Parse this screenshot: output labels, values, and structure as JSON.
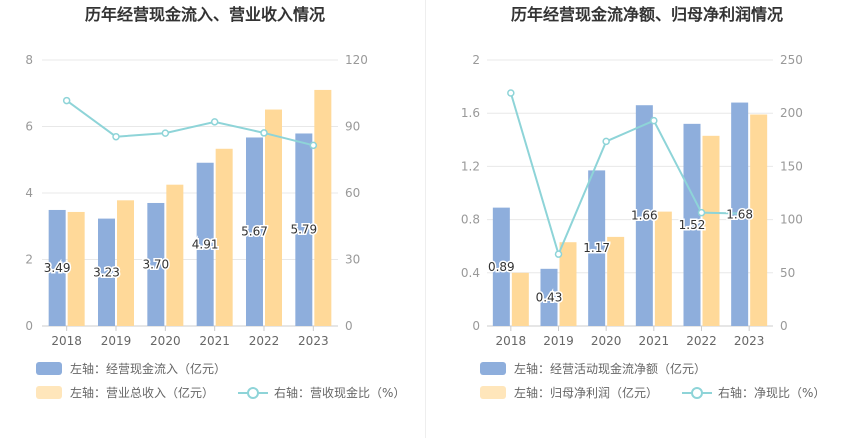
{
  "colors": {
    "bar1": "#8eaedc",
    "bar2": "#ffd999",
    "line": "#8ed4d8",
    "grid": "#e8e8e8",
    "axis": "#999999",
    "title": "#333333"
  },
  "chart_data": [
    {
      "type": "bar",
      "title": "历年经营现金流入、营业收入情况",
      "categories": [
        "2018",
        "2019",
        "2020",
        "2021",
        "2022",
        "2023"
      ],
      "left_axis": {
        "ticks": [
          "0",
          "2",
          "4",
          "6",
          "8"
        ],
        "ylim": [
          0,
          8
        ]
      },
      "right_axis": {
        "ticks": [
          "0",
          "30",
          "60",
          "90",
          "120"
        ],
        "ylim": [
          0,
          120
        ]
      },
      "series": [
        {
          "name": "左轴：经营现金流入（亿元）",
          "axis": "left",
          "kind": "bar",
          "values": [
            3.49,
            3.23,
            3.7,
            4.91,
            5.67,
            5.79
          ],
          "labels": [
            "3.49",
            "3.23",
            "3.70",
            "4.91",
            "5.67",
            "5.79"
          ]
        },
        {
          "name": "左轴：营业总收入（亿元）",
          "axis": "left",
          "kind": "bar",
          "values": [
            3.43,
            3.78,
            4.25,
            5.33,
            6.51,
            7.1
          ]
        },
        {
          "name": "右轴：营收现金比（%）",
          "axis": "right",
          "kind": "line",
          "values": [
            101.7,
            85.4,
            87.0,
            92.1,
            87.1,
            81.5
          ]
        }
      ]
    },
    {
      "type": "bar",
      "title": "历年经营现金流净额、归母净利润情况",
      "categories": [
        "2018",
        "2019",
        "2020",
        "2021",
        "2022",
        "2023"
      ],
      "left_axis": {
        "ticks": [
          "0",
          "0.4",
          "0.8",
          "1.2",
          "1.6",
          "2"
        ],
        "ylim": [
          0,
          2
        ]
      },
      "right_axis": {
        "ticks": [
          "0",
          "50",
          "100",
          "150",
          "200",
          "250"
        ],
        "ylim": [
          0,
          250
        ]
      },
      "series": [
        {
          "name": "左轴：经营活动现金流净额（亿元）",
          "axis": "left",
          "kind": "bar",
          "values": [
            0.89,
            0.43,
            1.17,
            1.66,
            1.52,
            1.68
          ],
          "labels": [
            "0.89",
            "0.43",
            "1.17",
            "1.66",
            "1.52",
            "1.68"
          ]
        },
        {
          "name": "左轴：归母净利润（亿元）",
          "axis": "left",
          "kind": "bar",
          "values": [
            0.4,
            0.63,
            0.67,
            0.86,
            1.43,
            1.59
          ]
        },
        {
          "name": "右轴：净现比（%）",
          "axis": "right",
          "kind": "line",
          "values": [
            219.0,
            67.5,
            173.5,
            193.0,
            106.5,
            105.5
          ]
        }
      ]
    }
  ]
}
